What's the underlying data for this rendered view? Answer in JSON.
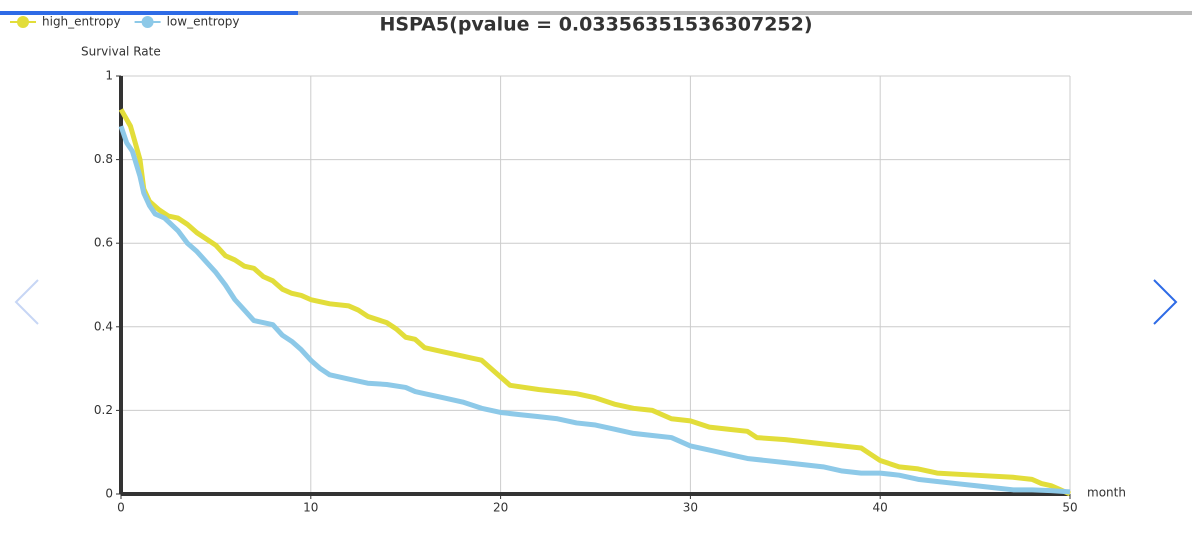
{
  "chart_data": {
    "type": "line",
    "title": "HSPA5(pvalue = 0.03356351536307252)",
    "y_label": "Survival Rate",
    "x_label": "month",
    "xlim": [
      0,
      50
    ],
    "xticks": [
      0,
      10,
      20,
      30,
      40,
      50
    ],
    "ylim": [
      0,
      1
    ],
    "yticks": [
      0,
      0.2,
      0.4,
      0.6,
      0.8,
      1
    ],
    "grid": true,
    "legend": "top-left",
    "series": [
      {
        "name": "high_entropy",
        "color": "#e2dd3a",
        "x": [
          0,
          0.5,
          1,
          1.2,
          1.5,
          2,
          2.5,
          3,
          3.5,
          4,
          4.5,
          5,
          5.5,
          6,
          6.5,
          7,
          7.5,
          8,
          8.5,
          9,
          9.5,
          10,
          11,
          12,
          12.5,
          13,
          14,
          14.5,
          15,
          15.5,
          16,
          17,
          18,
          18.5,
          19,
          19.5,
          20,
          20.5,
          22,
          24,
          25,
          26,
          27,
          28,
          29,
          30,
          31,
          32,
          33,
          33.5,
          35,
          36,
          37,
          38,
          39,
          39.5,
          40,
          41,
          42,
          43,
          45,
          47,
          48,
          48.5,
          49,
          49.5,
          50
        ],
        "values": [
          0.92,
          0.88,
          0.8,
          0.73,
          0.7,
          0.68,
          0.665,
          0.66,
          0.645,
          0.625,
          0.61,
          0.595,
          0.57,
          0.56,
          0.545,
          0.54,
          0.52,
          0.51,
          0.49,
          0.48,
          0.475,
          0.465,
          0.455,
          0.45,
          0.44,
          0.425,
          0.41,
          0.395,
          0.375,
          0.37,
          0.35,
          0.34,
          0.33,
          0.325,
          0.32,
          0.3,
          0.28,
          0.26,
          0.25,
          0.24,
          0.23,
          0.215,
          0.205,
          0.2,
          0.18,
          0.175,
          0.16,
          0.155,
          0.15,
          0.135,
          0.13,
          0.125,
          0.12,
          0.115,
          0.11,
          0.095,
          0.08,
          0.065,
          0.06,
          0.05,
          0.045,
          0.04,
          0.035,
          0.025,
          0.02,
          0.01,
          0
        ]
      },
      {
        "name": "low_entropy",
        "color": "#8dc9e8",
        "x": [
          0,
          0.3,
          0.6,
          0.8,
          1,
          1.2,
          1.5,
          1.8,
          2.3,
          3,
          3.5,
          4,
          4.5,
          5,
          5.5,
          6,
          6.5,
          7,
          8,
          8.5,
          9,
          9.5,
          10,
          10.5,
          11,
          12,
          13,
          14,
          15,
          15.5,
          16,
          17,
          18,
          19,
          20,
          21,
          22,
          23,
          24,
          25,
          26,
          27,
          28,
          29,
          30,
          31,
          32,
          33,
          34,
          35,
          36,
          37,
          38,
          39,
          40,
          41,
          42,
          43,
          44,
          45,
          46,
          47,
          48,
          49,
          50
        ],
        "values": [
          0.88,
          0.84,
          0.82,
          0.79,
          0.76,
          0.72,
          0.69,
          0.67,
          0.66,
          0.63,
          0.6,
          0.58,
          0.555,
          0.53,
          0.5,
          0.465,
          0.44,
          0.415,
          0.405,
          0.38,
          0.365,
          0.345,
          0.32,
          0.3,
          0.285,
          0.275,
          0.265,
          0.262,
          0.255,
          0.245,
          0.24,
          0.23,
          0.22,
          0.205,
          0.195,
          0.19,
          0.185,
          0.18,
          0.17,
          0.165,
          0.155,
          0.145,
          0.14,
          0.135,
          0.115,
          0.105,
          0.095,
          0.085,
          0.08,
          0.075,
          0.07,
          0.065,
          0.055,
          0.05,
          0.05,
          0.045,
          0.035,
          0.03,
          0.025,
          0.02,
          0.015,
          0.01,
          0.01,
          0.008,
          0.005
        ]
      }
    ]
  }
}
